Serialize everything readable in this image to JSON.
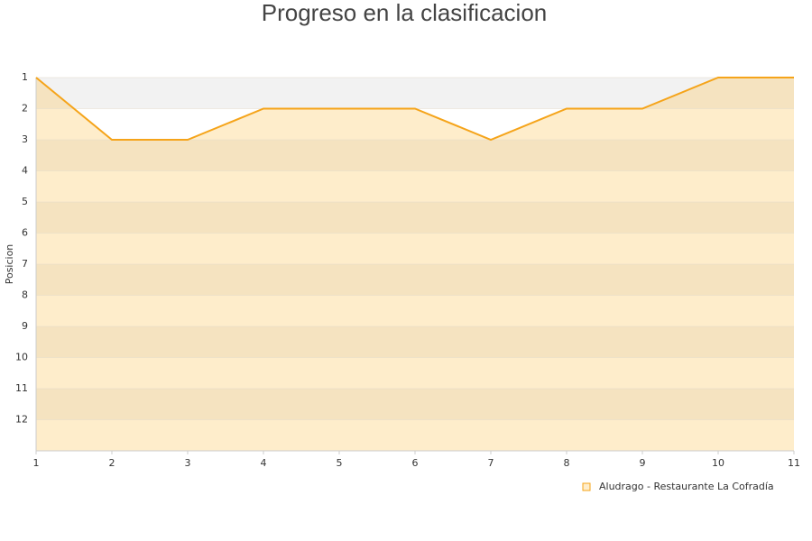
{
  "chart_data": {
    "type": "line",
    "title": "Progreso en la clasificacion",
    "y_label": "Posicion",
    "x": [
      1,
      2,
      3,
      4,
      5,
      6,
      7,
      8,
      9,
      10,
      11
    ],
    "series": [
      {
        "name": "Aludrago - Restaurante La Cofradía",
        "color": "#f5a41a",
        "values": [
          1,
          3,
          3,
          2,
          2,
          2,
          3,
          2,
          2,
          1,
          1
        ]
      }
    ],
    "xlim": [
      1,
      11
    ],
    "xticks": [
      1,
      2,
      3,
      4,
      5,
      6,
      7,
      8,
      9,
      10,
      11
    ],
    "ylim": [
      13,
      1
    ],
    "yticks": [
      1,
      2,
      3,
      4,
      5,
      6,
      7,
      8,
      9,
      10,
      11,
      12
    ],
    "legend": "bottom-right"
  }
}
